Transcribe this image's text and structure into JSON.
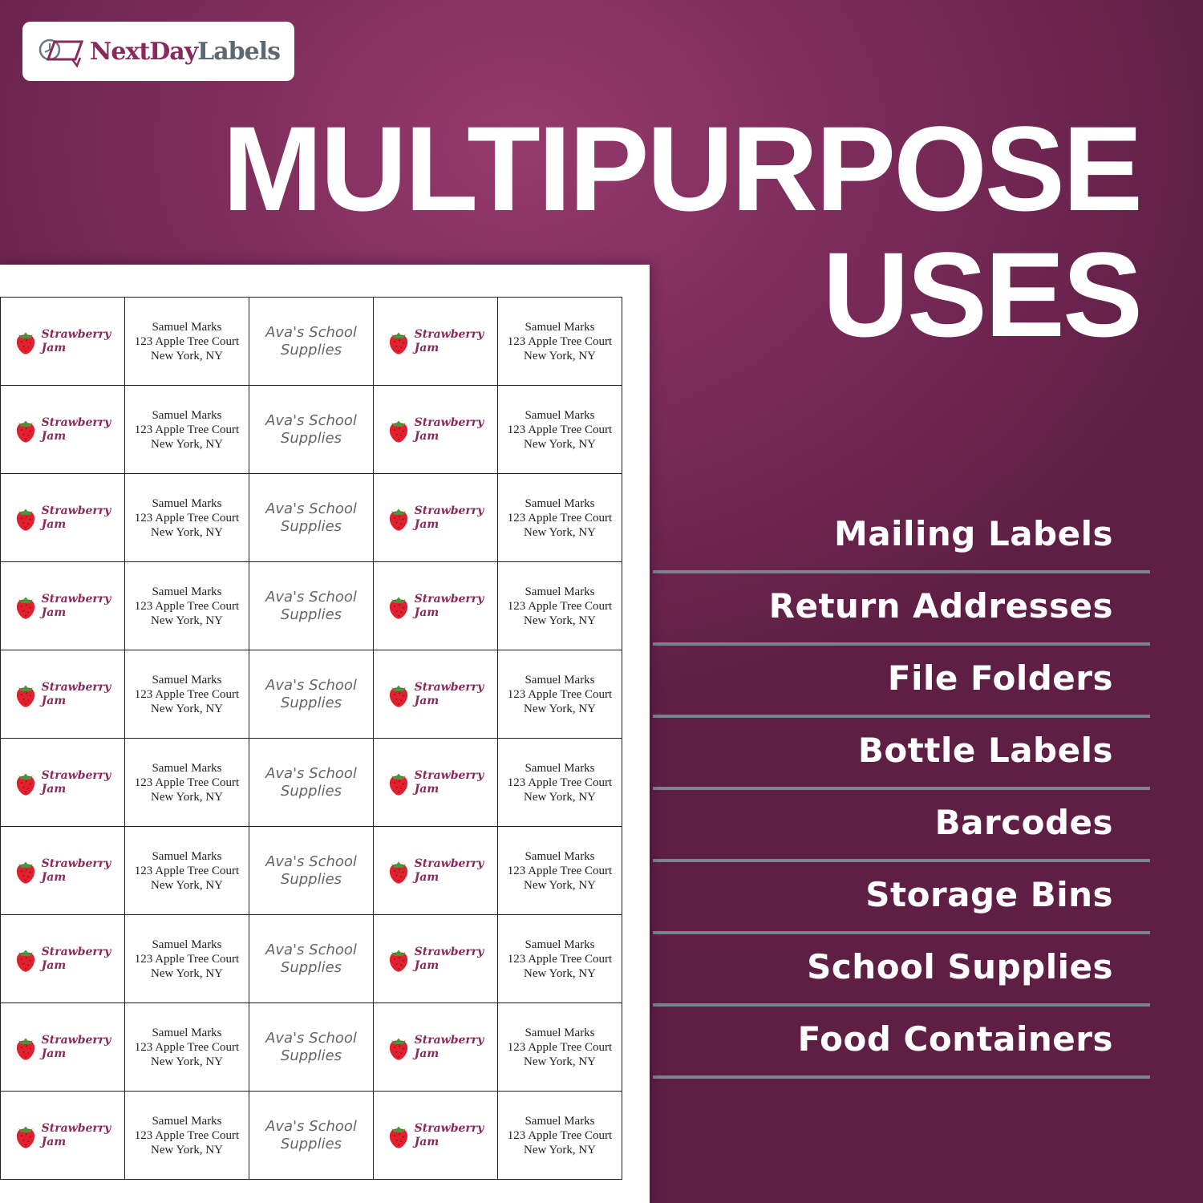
{
  "logo": {
    "part1": "NextDay",
    "part2": "Labels"
  },
  "headline": {
    "line1": "MULTIPURPOSE",
    "line2": "USES"
  },
  "uses": [
    "Mailing Labels",
    "Return Addresses",
    "File Folders",
    "Bottle Labels",
    "Barcodes",
    "Storage Bins",
    "School Supplies",
    "Food Containers"
  ],
  "labels": {
    "address": {
      "name": "Samuel Marks",
      "street": "123 Apple Tree Court",
      "city": "New York, NY"
    },
    "school": {
      "line1": "Ava's School",
      "line2": "Supplies"
    },
    "jam": {
      "line1": "Strawberry",
      "line2": "Jam",
      "icon": "strawberry-icon"
    }
  },
  "colors": {
    "brand": "#8a2a5c",
    "background": "#7d2c5b",
    "divider": "#7b8592"
  }
}
